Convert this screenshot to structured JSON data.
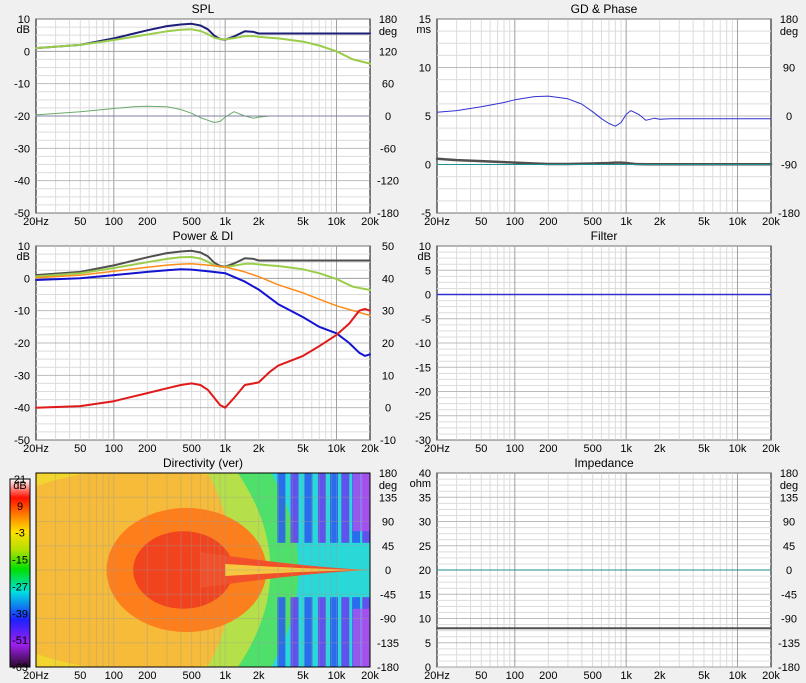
{
  "chart_data": [
    {
      "id": "spl",
      "type": "line",
      "title": "SPL",
      "xscale": "log",
      "xlim": [
        20,
        20000
      ],
      "x_tick_labels": [
        "20Hz",
        "50",
        "100",
        "200",
        "500",
        "1k",
        "2k",
        "5k",
        "10k",
        "20k"
      ],
      "x_tick_values": [
        20,
        50,
        100,
        200,
        500,
        1000,
        2000,
        5000,
        10000,
        20000
      ],
      "ylabel_left": "dB",
      "ylim_left": [
        -50,
        10
      ],
      "y_ticks_left": [
        10,
        0,
        -10,
        -20,
        -30,
        -40,
        -50
      ],
      "ylabel_right": "deg",
      "ylim_right": [
        -180,
        180
      ],
      "y_ticks_right": [
        180,
        120,
        60,
        0,
        -60,
        -120,
        -180
      ],
      "grid": true,
      "series": [
        {
          "axis": "left",
          "color": "#1e1e78",
          "width": 2,
          "x": [
            20,
            50,
            100,
            200,
            300,
            400,
            500,
            600,
            700,
            800,
            900,
            1000,
            1200,
            1500,
            1800,
            2000,
            2500,
            3000,
            5000,
            10000,
            20000
          ],
          "y": [
            1,
            2,
            4,
            6.5,
            7.8,
            8.3,
            8.5,
            8,
            6.8,
            4.8,
            3.8,
            3.6,
            4.6,
            6.2,
            6,
            5.5,
            5.5,
            5.5,
            5.5,
            5.5,
            5.5
          ]
        },
        {
          "axis": "left",
          "color": "#9acd4a",
          "width": 2,
          "x": [
            20,
            50,
            100,
            200,
            300,
            400,
            500,
            600,
            700,
            800,
            900,
            1000,
            1200,
            1500,
            1800,
            2000,
            2500,
            3000,
            5000,
            7000,
            10000,
            14000,
            20000
          ],
          "y": [
            1,
            2,
            3.5,
            5.2,
            6.2,
            6.7,
            6.8,
            6.3,
            5.3,
            4.2,
            3.8,
            3.7,
            4.1,
            4.7,
            4.7,
            4.5,
            4.2,
            4,
            3,
            1.8,
            0,
            -2.5,
            -3.8
          ]
        },
        {
          "axis": "right",
          "color": "#6aaa6a",
          "width": 1,
          "x": [
            20,
            50,
            100,
            150,
            200,
            300,
            400,
            500,
            600,
            700,
            800,
            900,
            1000,
            1200,
            1500,
            1800,
            2000,
            2500,
            3000,
            5000,
            20000
          ],
          "y": [
            2,
            8,
            14,
            17,
            18,
            17,
            12,
            5,
            -3,
            -8,
            -12,
            -10,
            -2,
            8,
            0,
            -4,
            -2,
            0,
            0,
            0,
            0
          ]
        },
        {
          "axis": "right",
          "color": "#8080a0",
          "width": 1,
          "x": [
            20,
            20000
          ],
          "y": [
            0,
            0
          ]
        }
      ]
    },
    {
      "id": "gd",
      "type": "line",
      "title": "GD & Phase",
      "xscale": "log",
      "xlim": [
        20,
        20000
      ],
      "x_tick_labels": [
        "20Hz",
        "50",
        "100",
        "200",
        "500",
        "1k",
        "2k",
        "5k",
        "10k",
        "20k"
      ],
      "x_tick_values": [
        20,
        50,
        100,
        200,
        500,
        1000,
        2000,
        5000,
        10000,
        20000
      ],
      "ylabel_left": "ms",
      "ylim_left": [
        -5,
        15
      ],
      "y_ticks_left": [
        15,
        10,
        5,
        0,
        -5
      ],
      "ylabel_right": "deg",
      "ylim_right": [
        -180,
        180
      ],
      "y_ticks_right": [
        180,
        90,
        0,
        -90,
        -180
      ],
      "grid": true,
      "series": [
        {
          "axis": "right",
          "color": "#3030d0",
          "width": 1,
          "x": [
            20,
            30,
            50,
            80,
            100,
            150,
            200,
            300,
            400,
            500,
            600,
            700,
            800,
            900,
            1000,
            1100,
            1300,
            1500,
            1800,
            2000,
            2500,
            3000,
            5000,
            10000,
            20000
          ],
          "y": [
            7,
            10,
            17,
            25,
            30,
            36,
            37,
            32,
            22,
            8,
            -5,
            -14,
            -19,
            -12,
            3,
            10,
            3,
            -8,
            -4,
            -6,
            -5,
            -5,
            -5,
            -5,
            -5
          ]
        },
        {
          "axis": "left",
          "color": "#505050",
          "width": 2.5,
          "x": [
            20,
            30,
            50,
            80,
            100,
            150,
            200,
            300,
            500,
            700,
            800,
            900,
            1000,
            1200,
            1500,
            2000,
            3000,
            5000,
            10000,
            20000
          ],
          "y": [
            0.6,
            0.45,
            0.35,
            0.25,
            0.2,
            0.1,
            0.05,
            0.05,
            0.1,
            0.15,
            0.2,
            0.2,
            0.15,
            0.05,
            0.02,
            0.02,
            0.02,
            0.02,
            0.02,
            0.02
          ]
        },
        {
          "axis": "left",
          "color": "#1c8f8f",
          "width": 1,
          "x": [
            20,
            20000
          ],
          "y": [
            0,
            0
          ]
        }
      ]
    },
    {
      "id": "power",
      "type": "line",
      "title": "Power & DI",
      "xscale": "log",
      "xlim": [
        20,
        20000
      ],
      "x_tick_labels": [
        "20Hz",
        "50",
        "100",
        "200",
        "500",
        "1k",
        "2k",
        "5k",
        "10k",
        "20k"
      ],
      "x_tick_values": [
        20,
        50,
        100,
        200,
        500,
        1000,
        2000,
        5000,
        10000,
        20000
      ],
      "ylabel_left": "dB",
      "ylim_left": [
        -50,
        10
      ],
      "y_ticks_left": [
        10,
        0,
        -10,
        -20,
        -30,
        -40,
        -50
      ],
      "ylim_right": [
        -10,
        50
      ],
      "y_ticks_right": [
        50,
        40,
        30,
        20,
        10,
        0,
        -10
      ],
      "grid": true,
      "series": [
        {
          "axis": "left",
          "color": "#505050",
          "width": 2,
          "x": [
            20,
            50,
            100,
            200,
            300,
            400,
            500,
            600,
            700,
            800,
            900,
            1000,
            1200,
            1500,
            1800,
            2000,
            2500,
            3000,
            5000,
            10000,
            20000
          ],
          "y": [
            1,
            2,
            4,
            6.5,
            7.8,
            8.3,
            8.5,
            8,
            6.8,
            4.8,
            3.8,
            3.6,
            4.6,
            6.2,
            6,
            5.5,
            5.5,
            5.5,
            5.5,
            5.5,
            5.5
          ]
        },
        {
          "axis": "left",
          "color": "#9acd4a",
          "width": 2,
          "x": [
            20,
            50,
            100,
            200,
            300,
            400,
            500,
            600,
            700,
            800,
            900,
            1000,
            1200,
            1500,
            1800,
            2000,
            2500,
            3000,
            5000,
            7000,
            10000,
            14000,
            20000
          ],
          "y": [
            0.6,
            1.6,
            3.2,
            5,
            6,
            6.5,
            6.6,
            6.1,
            5.1,
            4,
            3.6,
            3.5,
            3.9,
            4.5,
            4.5,
            4.3,
            4,
            3.8,
            2.8,
            1.6,
            -0.2,
            -2.6,
            -3.6
          ]
        },
        {
          "axis": "left",
          "color": "#ff8c1a",
          "width": 1.5,
          "x": [
            20,
            50,
            100,
            200,
            300,
            400,
            500,
            700,
            1000,
            1500,
            2000,
            3000,
            5000,
            10000,
            20000
          ],
          "y": [
            0.2,
            1,
            2.2,
            3.4,
            4.1,
            4.4,
            4.5,
            4.1,
            3.5,
            2,
            0.5,
            -2,
            -4.5,
            -8.5,
            -11.5
          ]
        },
        {
          "axis": "left",
          "color": "#1414d0",
          "width": 2,
          "x": [
            20,
            50,
            100,
            200,
            300,
            400,
            500,
            700,
            1000,
            1500,
            2000,
            3000,
            5000,
            7000,
            10000,
            13000,
            16000,
            18000,
            20000
          ],
          "y": [
            -0.5,
            0,
            1,
            2,
            2.5,
            2.8,
            2.7,
            2.2,
            1.6,
            -1,
            -3.5,
            -8,
            -12,
            -15,
            -17,
            -20,
            -23,
            -24,
            -23.5
          ]
        },
        {
          "axis": "right",
          "color": "#e01a1a",
          "width": 2,
          "x": [
            20,
            50,
            100,
            200,
            300,
            400,
            500,
            600,
            700,
            800,
            900,
            1000,
            1200,
            1500,
            1800,
            2000,
            2500,
            3000,
            5000,
            7000,
            10000,
            13000,
            16000,
            18000,
            20000
          ],
          "y": [
            0,
            0.5,
            2,
            4.5,
            6,
            7,
            7.5,
            7,
            5.5,
            3,
            0.8,
            0,
            3,
            7,
            7.5,
            7.8,
            11,
            13,
            16,
            19,
            22.5,
            26,
            30,
            30.5,
            30
          ]
        }
      ]
    },
    {
      "id": "filter",
      "type": "line",
      "title": "Filter",
      "xscale": "log",
      "xlim": [
        20,
        20000
      ],
      "x_tick_labels": [
        "20Hz",
        "50",
        "100",
        "200",
        "500",
        "1k",
        "2k",
        "5k",
        "10k",
        "20k"
      ],
      "x_tick_values": [
        20,
        50,
        100,
        200,
        500,
        1000,
        2000,
        5000,
        10000,
        20000
      ],
      "ylabel_left": "dB",
      "ylim_left": [
        -30,
        10
      ],
      "y_ticks_left": [
        10,
        5,
        0,
        -5,
        -10,
        -15,
        -20,
        -25,
        -30
      ],
      "grid": true,
      "series": [
        {
          "axis": "left",
          "color": "#3030d0",
          "width": 1.5,
          "x": [
            20,
            20000
          ],
          "y": [
            0,
            0
          ]
        }
      ]
    },
    {
      "id": "directivity",
      "type": "heatmap",
      "title": "Directivity (ver)",
      "xscale": "log",
      "xlim": [
        20,
        20000
      ],
      "x_tick_labels": [
        "20Hz",
        "50",
        "100",
        "200",
        "500",
        "1k",
        "2k",
        "5k",
        "10k",
        "20k"
      ],
      "x_tick_values": [
        20,
        50,
        100,
        200,
        500,
        1000,
        2000,
        5000,
        10000,
        20000
      ],
      "colorbar_label": "dB",
      "colorbar_ticks": [
        21,
        9,
        -3,
        -15,
        -27,
        -39,
        -51,
        -63
      ],
      "colorbar_range": [
        -63,
        21
      ],
      "ylabel_right": "deg",
      "ylim_right": [
        -180,
        180
      ],
      "y_ticks_right": [
        180,
        135,
        90,
        45,
        0,
        -45,
        -90,
        -135,
        -180
      ],
      "grid": true
    },
    {
      "id": "impedance",
      "type": "line",
      "title": "Impedance",
      "xscale": "log",
      "xlim": [
        20,
        20000
      ],
      "x_tick_labels": [
        "20Hz",
        "50",
        "100",
        "200",
        "500",
        "1k",
        "2k",
        "5k",
        "10k",
        "20k"
      ],
      "x_tick_values": [
        20,
        50,
        100,
        200,
        500,
        1000,
        2000,
        5000,
        10000,
        20000
      ],
      "ylabel_left": "ohm",
      "ylim_left": [
        0,
        40
      ],
      "y_ticks_left": [
        40,
        35,
        30,
        25,
        20,
        15,
        10,
        5,
        0
      ],
      "ylabel_right": "deg",
      "ylim_right": [
        -180,
        180
      ],
      "y_ticks_right": [
        180,
        135,
        90,
        45,
        0,
        -45,
        -90,
        -135,
        -180
      ],
      "grid": true,
      "series": [
        {
          "axis": "left",
          "color": "#505050",
          "width": 2,
          "x": [
            20,
            20000
          ],
          "y": [
            8,
            8
          ]
        },
        {
          "axis": "right",
          "color": "#1c8f8f",
          "width": 1,
          "x": [
            20,
            20000
          ],
          "y": [
            0,
            0
          ]
        }
      ]
    }
  ]
}
